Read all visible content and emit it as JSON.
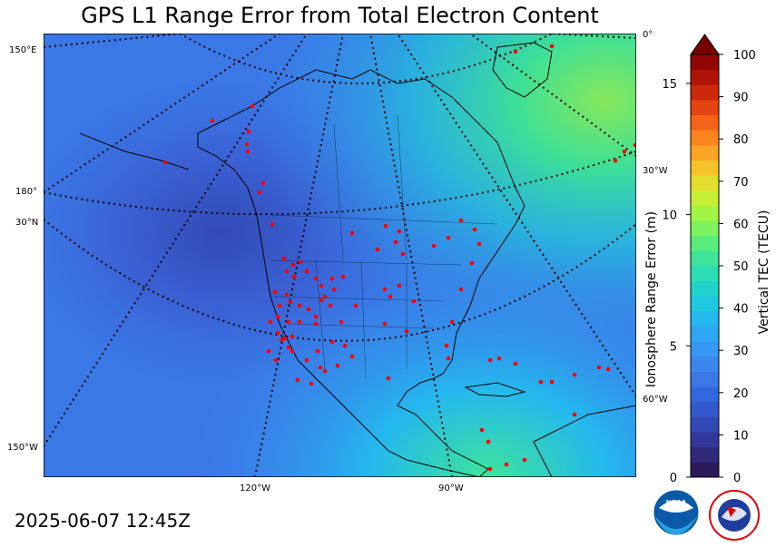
{
  "title": "GPS L1 Range Error from Total Electron Content",
  "timestamp": "2025-06-07 12:45Z",
  "map": {
    "lon_labels_left": [
      "150°E",
      "180°",
      "30°N",
      "150°W"
    ],
    "lon_labels_right": [
      "0°",
      "30°W",
      "60°W"
    ],
    "lon_labels_bottom": [
      "120°W",
      "90°W"
    ],
    "station_color": "#ff0000",
    "land_outline_color": "#000000"
  },
  "colorbar": {
    "left_axis_label": "Ionosphere Range Error (m)",
    "left_ticks": [
      "0",
      "5",
      "10",
      "15"
    ],
    "right_axis_label": "Vertical TEC (TECU)",
    "right_ticks": [
      "0",
      "10",
      "20",
      "30",
      "40",
      "50",
      "60",
      "70",
      "80",
      "90",
      "100"
    ],
    "extend_color": "#7a0000",
    "colors": [
      "#2c1a5a",
      "#30297a",
      "#32389a",
      "#3248b5",
      "#3258cc",
      "#3268dd",
      "#3a78e6",
      "#3a88ee",
      "#3796f1",
      "#2ea8f3",
      "#24b8ee",
      "#1ec8e0",
      "#20d4cc",
      "#2cdcb4",
      "#3ee49a",
      "#58ec7c",
      "#7cf25c",
      "#a2f542",
      "#c6f034",
      "#e2de2e",
      "#f6c22a",
      "#fca424",
      "#fb841e",
      "#f36418",
      "#e34412",
      "#cc280c",
      "#b01408",
      "#900604"
    ]
  },
  "logos": {
    "noaa_text": "NOAA",
    "nws_text": "NATIONAL WEATHER SERVICE"
  }
}
